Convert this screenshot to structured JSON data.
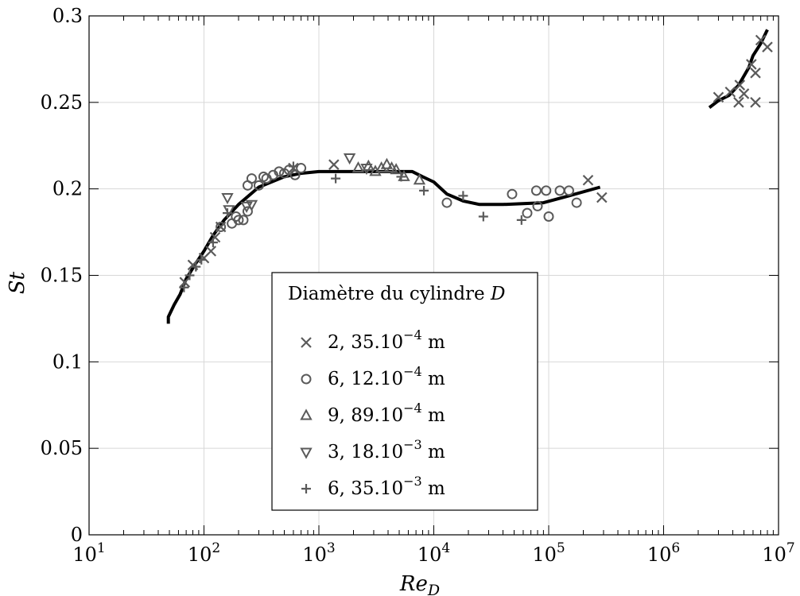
{
  "chart_data": {
    "type": "scatter",
    "title": "",
    "xlabel": "Re_D",
    "ylabel": "St",
    "xscale": "log",
    "xlim": [
      10,
      10000000
    ],
    "ylim": [
      0,
      0.3
    ],
    "grid": true,
    "x_ticks": [
      10,
      100,
      1000,
      10000,
      100000,
      1000000,
      10000000
    ],
    "x_tick_labels": [
      {
        "base": "10",
        "exp": "1"
      },
      {
        "base": "10",
        "exp": "2"
      },
      {
        "base": "10",
        "exp": "3"
      },
      {
        "base": "10",
        "exp": "4"
      },
      {
        "base": "10",
        "exp": "5"
      },
      {
        "base": "10",
        "exp": "6"
      },
      {
        "base": "10",
        "exp": "7"
      }
    ],
    "y_ticks": [
      0,
      0.05,
      0.1,
      0.15,
      0.2,
      0.25,
      0.3
    ],
    "y_tick_labels": [
      "0",
      "0.05",
      "0.1",
      "0.15",
      "0.2",
      "0.25",
      "0.3"
    ],
    "legend": {
      "placement": "center-left",
      "title": "Diamètre du cylindre",
      "title_symbol": "D"
    },
    "series": [
      {
        "name": "2,35.10-4 m",
        "label_main": "2, 35.10",
        "label_exp": "−4",
        "label_unit": " m",
        "marker": "x",
        "color": "#5a5a5a",
        "points": [
          [
            68,
            0.146
          ],
          [
            80,
            0.156
          ],
          [
            100,
            0.16
          ],
          [
            115,
            0.164
          ],
          [
            125,
            0.172
          ],
          [
            140,
            0.178
          ],
          [
            600,
            0.212
          ],
          [
            1350,
            0.214
          ],
          [
            220000,
            0.205
          ],
          [
            290000,
            0.195
          ],
          [
            3000000,
            0.253
          ],
          [
            3800000,
            0.256
          ],
          [
            4500000,
            0.25
          ],
          [
            4600000,
            0.26
          ],
          [
            5000000,
            0.255
          ],
          [
            5800000,
            0.272
          ],
          [
            6300000,
            0.267
          ],
          [
            6300000,
            0.25
          ],
          [
            7000000,
            0.286
          ],
          [
            8000000,
            0.282
          ]
        ]
      },
      {
        "name": "6,12.10-4 m",
        "label_main": "6, 12.10",
        "label_exp": "−4",
        "label_unit": " m",
        "marker": "o",
        "color": "#5a5a5a",
        "points": [
          [
            140,
            0.178
          ],
          [
            175,
            0.18
          ],
          [
            190,
            0.184
          ],
          [
            200,
            0.182
          ],
          [
            220,
            0.182
          ],
          [
            240,
            0.187
          ],
          [
            240,
            0.202
          ],
          [
            260,
            0.206
          ],
          [
            300,
            0.202
          ],
          [
            330,
            0.207
          ],
          [
            350,
            0.206
          ],
          [
            400,
            0.208
          ],
          [
            450,
            0.21
          ],
          [
            500,
            0.209
          ],
          [
            550,
            0.211
          ],
          [
            620,
            0.208
          ],
          [
            700,
            0.212
          ],
          [
            13000,
            0.192
          ],
          [
            48000,
            0.197
          ],
          [
            65000,
            0.186
          ],
          [
            78000,
            0.199
          ],
          [
            80000,
            0.19
          ],
          [
            95000,
            0.199
          ],
          [
            100000,
            0.184
          ],
          [
            125000,
            0.199
          ],
          [
            150000,
            0.199
          ],
          [
            175000,
            0.192
          ]
        ]
      },
      {
        "name": "9,89.10-4 m",
        "label_main": "9, 89.10",
        "label_exp": "−4",
        "label_unit": " m",
        "marker": "triangle-up",
        "color": "#5a5a5a",
        "points": [
          [
            2200,
            0.212
          ],
          [
            2700,
            0.213
          ],
          [
            3100,
            0.21
          ],
          [
            3500,
            0.212
          ],
          [
            3900,
            0.214
          ],
          [
            4300,
            0.212
          ],
          [
            4700,
            0.211
          ],
          [
            5500,
            0.207
          ],
          [
            7500,
            0.205
          ]
        ]
      },
      {
        "name": "3,18.10-3 m",
        "label_main": "3, 18.10",
        "label_exp": "−3",
        "label_unit": " m",
        "marker": "triangle-down",
        "color": "#5a5a5a",
        "points": [
          [
            160,
            0.195
          ],
          [
            165,
            0.188
          ],
          [
            235,
            0.19
          ],
          [
            260,
            0.191
          ],
          [
            1850,
            0.218
          ],
          [
            2600,
            0.212
          ]
        ]
      },
      {
        "name": "6,35.10-3 m",
        "label_main": "6, 35.10",
        "label_exp": "−3",
        "label_unit": " m",
        "marker": "plus",
        "color": "#5a5a5a",
        "points": [
          [
            67,
            0.143
          ],
          [
            75,
            0.15
          ],
          [
            85,
            0.155
          ],
          [
            95,
            0.159
          ],
          [
            120,
            0.169
          ],
          [
            160,
            0.186
          ],
          [
            600,
            0.213
          ],
          [
            1400,
            0.206
          ],
          [
            5200,
            0.207
          ],
          [
            8200,
            0.199
          ],
          [
            18000,
            0.196
          ],
          [
            27000,
            0.184
          ],
          [
            58000,
            0.182
          ]
        ]
      }
    ],
    "curve": {
      "name": "",
      "color": "#000000",
      "segments": [
        [
          [
            49,
            0.122
          ],
          [
            49,
            0.126
          ],
          [
            55,
            0.133
          ],
          [
            62,
            0.139
          ],
          [
            70,
            0.148
          ],
          [
            85,
            0.157
          ],
          [
            100,
            0.164
          ],
          [
            120,
            0.173
          ],
          [
            150,
            0.182
          ],
          [
            200,
            0.191
          ],
          [
            300,
            0.201
          ],
          [
            500,
            0.207
          ],
          [
            700,
            0.209
          ],
          [
            1000,
            0.21
          ],
          [
            3000,
            0.21
          ],
          [
            6500,
            0.21
          ],
          [
            8000,
            0.207
          ],
          [
            10000,
            0.204
          ],
          [
            13000,
            0.197
          ],
          [
            18000,
            0.193
          ],
          [
            25000,
            0.191
          ],
          [
            40000,
            0.191
          ],
          [
            90000,
            0.192
          ],
          [
            150000,
            0.196
          ],
          [
            280000,
            0.201
          ]
        ],
        [
          [
            2500000,
            0.247
          ],
          [
            3000000,
            0.251
          ],
          [
            3700000,
            0.254
          ],
          [
            4500000,
            0.26
          ],
          [
            5500000,
            0.27
          ],
          [
            6000000,
            0.277
          ],
          [
            7000000,
            0.284
          ],
          [
            8000000,
            0.292
          ]
        ]
      ]
    }
  }
}
